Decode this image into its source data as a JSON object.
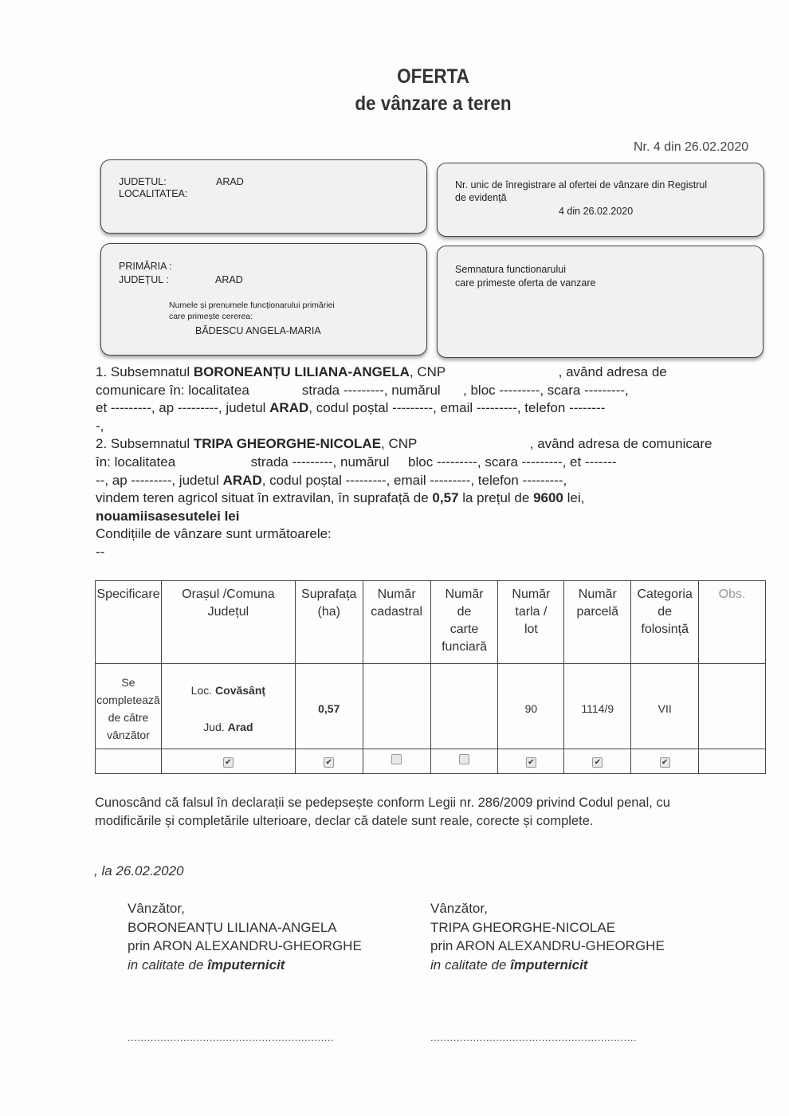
{
  "header": {
    "title": "OFERTA",
    "subtitle": "de vânzare a teren",
    "number": "Nr. 4 din 26.02.2020"
  },
  "box_location": {
    "judet_label": "JUDETUL:",
    "judet_value": "ARAD",
    "localitate_label": "LOCALITATEA:"
  },
  "box_registry": {
    "label_1": "Nr. unic de înregistrare al ofertei de vânzare din Registrul",
    "label_2": "de evidență",
    "value": "4 din 26.02.2020"
  },
  "box_primaria": {
    "primaria_label": "PRIMĂRIA :",
    "judet_label": "JUDEȚUL :",
    "judet_value": "ARAD",
    "clerk_label_1": "Numele și prenumele funcționarului primăriei",
    "clerk_label_2": "care primește cererea:",
    "clerk_name": "BĂDESCU ANGELA-MARIA"
  },
  "box_signature": {
    "label_1": "Semnatura functionarului",
    "label_2": "care primeste oferta de vanzare"
  },
  "paragraph": {
    "lines": [
      [
        {
          "t": "1. Subsemnatul "
        },
        {
          "t": "BORONEANȚU LILIANA-ANGELA",
          "b": true
        },
        {
          "t": ", CNP                              , având adresa de"
        }
      ],
      [
        {
          "t": "comunicare în: localitatea              strada ---------, numărul      , bloc ---------, scara ---------,"
        }
      ],
      [
        {
          "t": "et ---------, ap ---------, judetul "
        },
        {
          "t": "ARAD",
          "b": true
        },
        {
          "t": ", codul poștal ---------, email ---------, telefon --------"
        }
      ],
      [
        {
          "t": "-,"
        }
      ],
      [
        {
          "t": "2. Subsemnatul "
        },
        {
          "t": "TRIPA GHEORGHE-NICOLAE",
          "b": true
        },
        {
          "t": ", CNP                              , având adresa de comunicare"
        }
      ],
      [
        {
          "t": "în: localitatea                    strada ---------, numărul     bloc ---------, scara ---------, et -------"
        }
      ],
      [
        {
          "t": "--, ap ---------, judetul "
        },
        {
          "t": "ARAD",
          "b": true
        },
        {
          "t": ", codul poștal ---------, email ---------, telefon ---------,"
        }
      ],
      [
        {
          "t": "vindem teren agricol situat în extravilan, în suprafață de "
        },
        {
          "t": "0,57",
          "b": true
        },
        {
          "t": " la prețul de "
        },
        {
          "t": "9600",
          "b": true
        },
        {
          "t": " lei,"
        }
      ],
      [
        {
          "t": "nouamiisasesutelei lei",
          "b": true
        }
      ],
      [
        {
          "t": "Condițiile de vânzare sunt următoarele:"
        }
      ],
      [
        {
          "t": "--"
        }
      ]
    ]
  },
  "table": {
    "headers": [
      [
        "Specificare"
      ],
      [
        "Orașul /Comuna",
        "Județul"
      ],
      [
        "Suprafața",
        "(ha)"
      ],
      [
        "Număr",
        "cadastral"
      ],
      [
        "Număr",
        "de",
        "carte",
        "funciară"
      ],
      [
        "Număr",
        "tarla /",
        "lot"
      ],
      [
        "Număr",
        "parcelă"
      ],
      [
        "Categoria",
        "de",
        "folosință"
      ],
      [
        "Obs."
      ]
    ],
    "row": {
      "specificare": [
        "Se",
        "completează",
        "de către",
        "vânzător"
      ],
      "loc_prefix": "Loc.",
      "loc_value": "Covăsânț",
      "jud_prefix": "Jud.",
      "jud_value": "Arad",
      "suprafata": "0,57",
      "cadastral": "",
      "carte_funciara": "",
      "tarla": "90",
      "parcela": "1114/9",
      "categoria": "VII",
      "obs": ""
    },
    "checks": [
      true,
      true,
      false,
      false,
      true,
      true,
      true
    ]
  },
  "declaration": {
    "line_1": "Cunoscând că falsul în declarații se pedepsește conform Legii nr. 286/2009 privind Codul penal, cu",
    "line_2": "modificările și completările ulterioare, declar că datele sunt reale, corecte și complete."
  },
  "date": ", la 26.02.2020",
  "sellers": [
    {
      "role": "Vânzător,",
      "name": "BORONEANȚU LILIANA-ANGELA",
      "via_prefix": "prin ",
      "via_name": "ARON ALEXANDRU-GHEORGHE",
      "capacity_prefix": "in calitate de ",
      "capacity": "împuternicit",
      "dots": "..............................................................."
    },
    {
      "role": "Vânzător,",
      "name": "TRIPA GHEORGHE-NICOLAE",
      "via_prefix": "prin ",
      "via_name": "ARON ALEXANDRU-GHEORGHE",
      "capacity_prefix": "in calitate de ",
      "capacity": "împuternicit",
      "dots": "..............................................................."
    }
  ]
}
